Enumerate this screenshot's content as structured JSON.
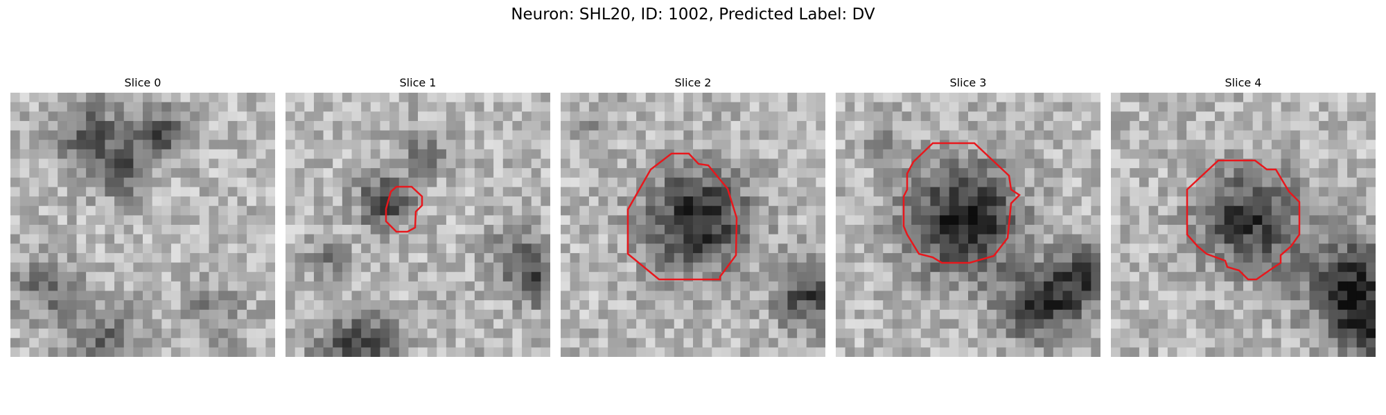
{
  "figure": {
    "title": "Neuron: SHL20, ID: 1002, Predicted Label: DV"
  },
  "contour_color": "#e8171c",
  "panels": [
    {
      "title": "Slice 0",
      "has_contour": false
    },
    {
      "title": "Slice 1",
      "has_contour": true
    },
    {
      "title": "Slice 2",
      "has_contour": true
    },
    {
      "title": "Slice 3",
      "has_contour": true
    },
    {
      "title": "Slice 4",
      "has_contour": true
    }
  ]
}
